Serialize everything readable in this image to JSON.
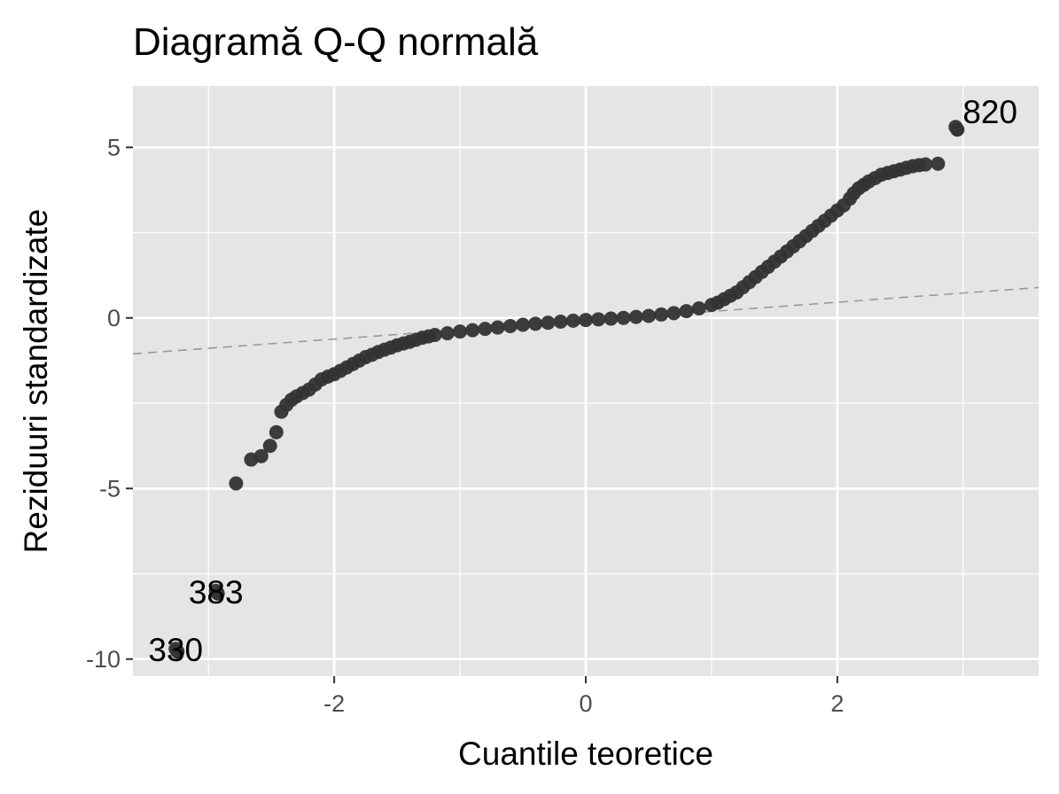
{
  "chart_data": {
    "type": "scatter",
    "title": "Diagramă Q-Q normală",
    "xlabel": "Cuantile teoretice",
    "ylabel": "Reziduuri standardizate",
    "xlim": [
      -3.6,
      3.6
    ],
    "ylim": [
      -10.5,
      6.8
    ],
    "x_ticks": [
      -2,
      0,
      2
    ],
    "x_tick_labels": [
      "-2",
      "0",
      "2"
    ],
    "y_ticks": [
      -10,
      -5,
      0,
      5
    ],
    "y_tick_labels": [
      "-10",
      "-5",
      "0",
      "5"
    ],
    "grid": true,
    "background_color": "#e5e5e5",
    "grid_color": "#ffffff",
    "point_color": "#333333",
    "reference_line": {
      "intercept": -0.08,
      "slope": 0.27,
      "style": "dashed",
      "color": "#999999"
    },
    "labeled_points": [
      {
        "label": "820",
        "x": 2.94,
        "y": 5.6
      },
      {
        "label": "383",
        "x": -2.94,
        "y": -8.0
      },
      {
        "label": "330",
        "x": -3.26,
        "y": -9.7
      }
    ],
    "series": [
      {
        "x": [
          -3.26,
          -2.94,
          -2.78,
          -2.66,
          -2.58,
          -2.51,
          -2.46,
          -2.42,
          -2.38,
          -2.34,
          -2.3,
          -2.25,
          -2.2,
          -2.15,
          -2.1,
          -2.05,
          -2.0,
          -1.95,
          -1.9,
          -1.85,
          -1.8,
          -1.75,
          -1.7,
          -1.65,
          -1.6,
          -1.55,
          -1.5,
          -1.45,
          -1.4,
          -1.35,
          -1.3,
          -1.25,
          -1.2,
          -1.1,
          -1.0,
          -0.9,
          -0.8,
          -0.7,
          -0.6,
          -0.5,
          -0.4,
          -0.3,
          -0.2,
          -0.1,
          0.0,
          0.1,
          0.2,
          0.3,
          0.4,
          0.5,
          0.6,
          0.7,
          0.8,
          0.9,
          1.0,
          1.05,
          1.1,
          1.15,
          1.2,
          1.25,
          1.3,
          1.35,
          1.4,
          1.45,
          1.5,
          1.55,
          1.6,
          1.65,
          1.7,
          1.75,
          1.8,
          1.85,
          1.9,
          1.95,
          2.0,
          2.05,
          2.1,
          2.13,
          2.17,
          2.21,
          2.25,
          2.3,
          2.35,
          2.4,
          2.45,
          2.5,
          2.55,
          2.6,
          2.65,
          2.7,
          2.8,
          2.94
        ],
        "y": [
          -9.7,
          -8.0,
          -4.85,
          -4.15,
          -4.05,
          -3.75,
          -3.35,
          -2.75,
          -2.55,
          -2.4,
          -2.3,
          -2.2,
          -2.1,
          -1.95,
          -1.8,
          -1.72,
          -1.65,
          -1.55,
          -1.45,
          -1.35,
          -1.25,
          -1.15,
          -1.08,
          -1.0,
          -0.93,
          -0.87,
          -0.8,
          -0.75,
          -0.7,
          -0.64,
          -0.58,
          -0.54,
          -0.5,
          -0.45,
          -0.4,
          -0.36,
          -0.32,
          -0.28,
          -0.24,
          -0.2,
          -0.17,
          -0.14,
          -0.11,
          -0.08,
          -0.06,
          -0.04,
          -0.02,
          0.0,
          0.03,
          0.06,
          0.1,
          0.14,
          0.2,
          0.28,
          0.38,
          0.45,
          0.55,
          0.65,
          0.75,
          0.9,
          1.05,
          1.2,
          1.35,
          1.5,
          1.65,
          1.8,
          1.95,
          2.1,
          2.25,
          2.4,
          2.55,
          2.7,
          2.85,
          3.0,
          3.15,
          3.3,
          3.5,
          3.65,
          3.8,
          3.9,
          4.0,
          4.1,
          4.2,
          4.25,
          4.3,
          4.35,
          4.4,
          4.45,
          4.48,
          4.5,
          4.52,
          5.6
        ]
      }
    ]
  }
}
